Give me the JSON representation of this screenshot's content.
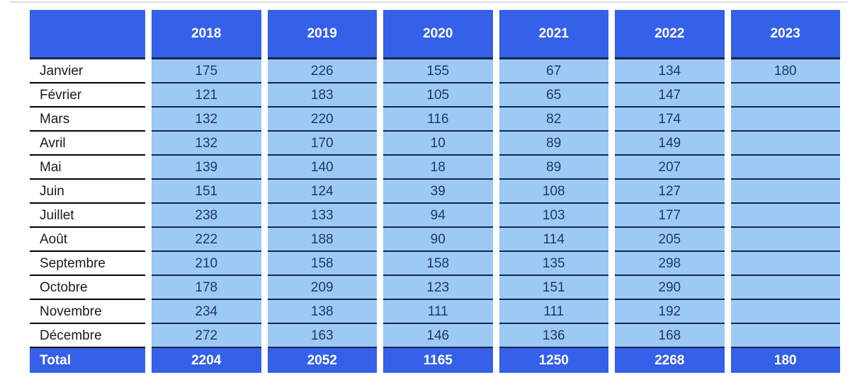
{
  "chart_data": {
    "type": "table",
    "corner_label": "",
    "years": [
      "2018",
      "2019",
      "2020",
      "2021",
      "2022",
      "2023"
    ],
    "months": [
      "Janvier",
      "Février",
      "Mars",
      "Avril",
      "Mai",
      "Juin",
      "Juillet",
      "Août",
      "Septembre",
      "Octobre",
      "Novembre",
      "Décembre"
    ],
    "values": [
      [
        175,
        226,
        155,
        67,
        134,
        180
      ],
      [
        121,
        183,
        105,
        65,
        147,
        null
      ],
      [
        132,
        220,
        116,
        82,
        174,
        null
      ],
      [
        132,
        170,
        10,
        89,
        149,
        null
      ],
      [
        139,
        140,
        18,
        89,
        207,
        null
      ],
      [
        151,
        124,
        39,
        108,
        127,
        null
      ],
      [
        238,
        133,
        94,
        103,
        177,
        null
      ],
      [
        222,
        188,
        90,
        114,
        205,
        null
      ],
      [
        210,
        158,
        158,
        135,
        298,
        null
      ],
      [
        178,
        209,
        123,
        151,
        290,
        null
      ],
      [
        234,
        138,
        111,
        111,
        192,
        null
      ],
      [
        272,
        163,
        146,
        136,
        168,
        null
      ]
    ],
    "total_label": "Total",
    "totals": [
      2204,
      2052,
      1165,
      1250,
      2268,
      180
    ],
    "layout": {
      "grid_on": true,
      "column_gaps_white": true,
      "header_position": "top",
      "total_position": "bottom"
    }
  },
  "colors": {
    "header_blue": "#3560e8",
    "cell_blue": "#9dc9f5",
    "separator_navy": "#13264a",
    "number_navy": "#1f3864",
    "month_text": "#1a1a1a",
    "month_line": "#000000",
    "top_rule_gray": "#dcdcdc",
    "background": "#ffffff"
  }
}
